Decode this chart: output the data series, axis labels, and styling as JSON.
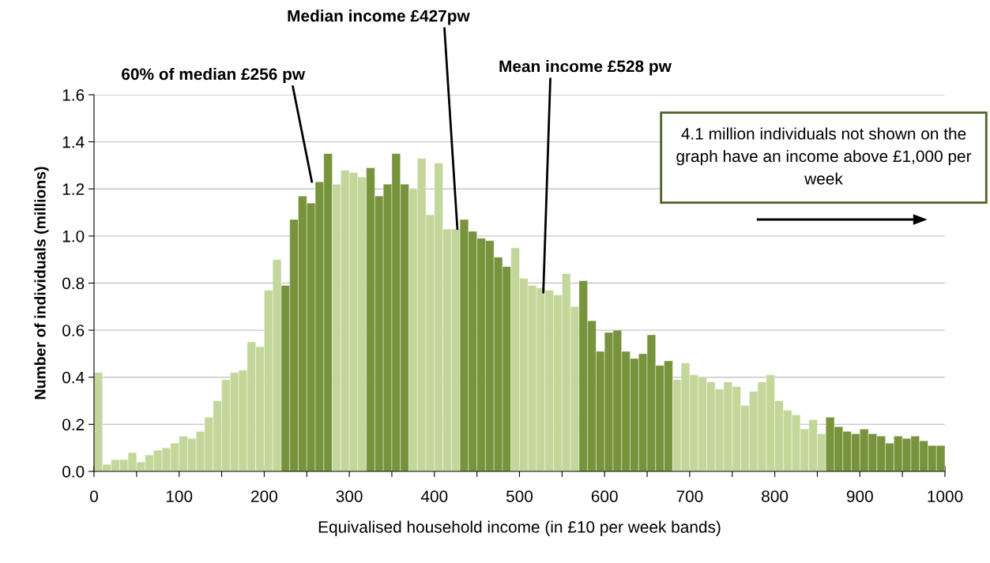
{
  "chart_data": {
    "type": "histogram",
    "xlabel": "Equivalised household income (in £10 per week bands)",
    "ylabel": "Number of individuals (millions)",
    "bins": [
      0,
      10,
      20,
      30,
      40,
      50,
      60,
      70,
      80,
      90,
      100,
      110,
      120,
      130,
      140,
      150,
      160,
      170,
      180,
      190,
      200,
      210,
      220,
      230,
      240,
      250,
      260,
      270,
      280,
      290,
      300,
      310,
      320,
      330,
      340,
      350,
      360,
      370,
      380,
      390,
      400,
      410,
      420,
      430,
      440,
      450,
      460,
      470,
      480,
      490,
      500,
      510,
      520,
      530,
      540,
      550,
      560,
      570,
      580,
      590,
      600,
      610,
      620,
      630,
      640,
      650,
      660,
      670,
      680,
      690,
      700,
      710,
      720,
      730,
      740,
      750,
      760,
      770,
      780,
      790,
      800,
      810,
      820,
      830,
      840,
      850,
      860,
      870,
      880,
      890,
      900,
      910,
      920,
      930,
      940,
      950,
      960,
      970,
      980,
      990,
      1000
    ],
    "values": [
      0.42,
      0.03,
      0.05,
      0.05,
      0.08,
      0.04,
      0.07,
      0.09,
      0.1,
      0.12,
      0.15,
      0.14,
      0.17,
      0.23,
      0.3,
      0.39,
      0.42,
      0.43,
      0.55,
      0.53,
      0.77,
      0.9,
      0.79,
      1.07,
      1.17,
      1.14,
      1.23,
      1.35,
      1.22,
      1.28,
      1.27,
      1.25,
      1.29,
      1.17,
      1.22,
      1.35,
      1.22,
      1.2,
      1.33,
      1.09,
      1.31,
      1.03,
      1.03,
      1.07,
      1.02,
      0.99,
      0.98,
      0.91,
      0.87,
      0.95,
      0.82,
      0.79,
      0.78,
      0.77,
      0.75,
      0.84,
      0.7,
      0.81,
      0.64,
      0.51,
      0.59,
      0.6,
      0.51,
      0.48,
      0.5,
      0.58,
      0.45,
      0.47,
      0.39,
      0.46,
      0.41,
      0.4,
      0.38,
      0.35,
      0.38,
      0.36,
      0.28,
      0.34,
      0.38,
      0.41,
      0.3,
      0.26,
      0.24,
      0.18,
      0.22,
      0.16,
      0.23,
      0.19,
      0.17,
      0.16,
      0.18,
      0.16,
      0.15,
      0.12,
      0.15,
      0.14,
      0.15,
      0.13,
      0.11,
      0.11
    ],
    "colors": [
      "#c4d79b",
      "#c4d79b",
      "#c4d79b",
      "#c4d79b",
      "#c4d79b",
      "#c4d79b",
      "#c4d79b",
      "#c4d79b",
      "#c4d79b",
      "#c4d79b",
      "#c4d79b",
      "#c4d79b",
      "#c4d79b",
      "#c4d79b",
      "#c4d79b",
      "#c4d79b",
      "#c4d79b",
      "#c4d79b",
      "#c4d79b",
      "#c4d79b",
      "#c4d79b",
      "#c4d79b",
      "#77933c",
      "#77933c",
      "#77933c",
      "#77933c",
      "#77933c",
      "#77933c",
      "#c4d79b",
      "#c4d79b",
      "#c4d79b",
      "#c4d79b",
      "#77933c",
      "#77933c",
      "#77933c",
      "#77933c",
      "#77933c",
      "#c4d79b",
      "#c4d79b",
      "#c4d79b",
      "#c4d79b",
      "#c4d79b",
      "#c4d79b",
      "#77933c",
      "#77933c",
      "#77933c",
      "#77933c",
      "#77933c",
      "#77933c",
      "#c4d79b",
      "#c4d79b",
      "#c4d79b",
      "#c4d79b",
      "#c4d79b",
      "#c4d79b",
      "#c4d79b",
      "#c4d79b",
      "#77933c",
      "#77933c",
      "#77933c",
      "#77933c",
      "#77933c",
      "#77933c",
      "#77933c",
      "#77933c",
      "#77933c",
      "#77933c",
      "#77933c",
      "#c4d79b",
      "#c4d79b",
      "#c4d79b",
      "#c4d79b",
      "#c4d79b",
      "#c4d79b",
      "#c4d79b",
      "#c4d79b",
      "#c4d79b",
      "#c4d79b",
      "#c4d79b",
      "#c4d79b",
      "#c4d79b",
      "#c4d79b",
      "#c4d79b",
      "#c4d79b",
      "#c4d79b",
      "#c4d79b",
      "#77933c",
      "#77933c",
      "#77933c",
      "#77933c",
      "#77933c",
      "#77933c",
      "#77933c",
      "#77933c",
      "#77933c",
      "#77933c",
      "#77933c",
      "#77933c",
      "#77933c",
      "#77933c"
    ],
    "xlim": [
      0,
      1000
    ],
    "xticks": [
      0,
      {
        "value": 50,
        "label": null
      },
      100,
      {
        "value": 150,
        "label": null
      },
      200,
      {
        "value": 250,
        "label": null
      },
      300,
      {
        "value": 350,
        "label": null
      },
      400,
      {
        "value": 450,
        "label": null
      },
      500,
      {
        "value": 550,
        "label": null
      },
      600,
      {
        "value": 650,
        "label": null
      },
      700,
      {
        "value": 750,
        "label": null
      },
      800,
      {
        "value": 850,
        "label": null
      },
      900,
      {
        "value": 950,
        "label": null
      },
      1000
    ],
    "ylim": [
      0,
      1.6
    ],
    "yticks": [
      {
        "value": 0,
        "label": "0.0"
      },
      {
        "value": 0.2,
        "label": "0.2"
      },
      {
        "value": 0.4,
        "label": "0.4"
      },
      {
        "value": 0.6,
        "label": "0.6"
      },
      {
        "value": 0.8,
        "label": "0.8"
      },
      {
        "value": 1.0,
        "label": "1.0"
      },
      {
        "value": 1.2,
        "label": "1.2"
      },
      {
        "value": 1.4,
        "label": "1.4"
      },
      {
        "value": 1.6,
        "label": "1.6"
      }
    ],
    "grid": "y",
    "legend": false,
    "annotations": [
      {
        "text": "60% of median £256 pw",
        "x": 256,
        "y": 1.23
      },
      {
        "text": "Median income £427pw",
        "x": 427,
        "y": 1.03
      },
      {
        "text": "Mean income £528 pw",
        "x": 528,
        "y": 0.76
      },
      "4.1 million individuals not shown on the graph have an income above £1,000 per week"
    ]
  }
}
